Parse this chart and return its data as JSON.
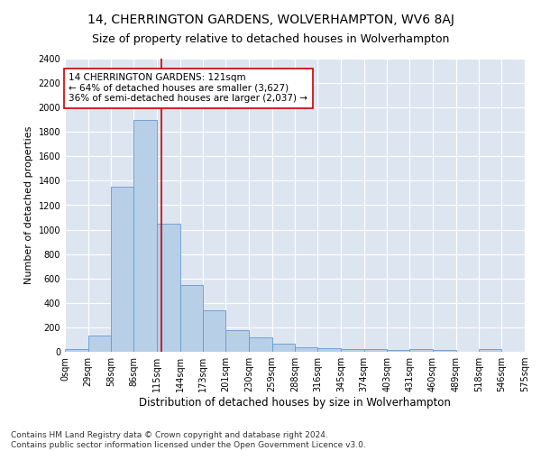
{
  "title": "14, CHERRINGTON GARDENS, WOLVERHAMPTON, WV6 8AJ",
  "subtitle": "Size of property relative to detached houses in Wolverhampton",
  "xlabel": "Distribution of detached houses by size in Wolverhampton",
  "ylabel": "Number of detached properties",
  "bar_color": "#b8cfe8",
  "bar_edge_color": "#6699cc",
  "background_color": "#dde6f0",
  "grid_color": "#ffffff",
  "annotation_line_color": "#cc0000",
  "annotation_box_color": "#cc0000",
  "annotation_text": "14 CHERRINGTON GARDENS: 121sqm\n← 64% of detached houses are smaller (3,627)\n36% of semi-detached houses are larger (2,037) →",
  "property_size": 121,
  "bin_edges": [
    0,
    29,
    58,
    86,
    115,
    144,
    173,
    201,
    230,
    259,
    288,
    316,
    345,
    374,
    403,
    431,
    460,
    489,
    518,
    546,
    575
  ],
  "bin_labels": [
    "0sqm",
    "29sqm",
    "58sqm",
    "86sqm",
    "115sqm",
    "144sqm",
    "173sqm",
    "201sqm",
    "230sqm",
    "259sqm",
    "288sqm",
    "316sqm",
    "345sqm",
    "374sqm",
    "403sqm",
    "431sqm",
    "460sqm",
    "489sqm",
    "518sqm",
    "546sqm",
    "575sqm"
  ],
  "counts": [
    20,
    130,
    1350,
    1900,
    1050,
    550,
    340,
    175,
    115,
    65,
    40,
    30,
    25,
    20,
    12,
    25,
    12,
    0,
    20,
    0
  ],
  "ylim": [
    0,
    2400
  ],
  "yticks": [
    0,
    200,
    400,
    600,
    800,
    1000,
    1200,
    1400,
    1600,
    1800,
    2000,
    2200,
    2400
  ],
  "footnote": "Contains HM Land Registry data © Crown copyright and database right 2024.\nContains public sector information licensed under the Open Government Licence v3.0.",
  "title_fontsize": 10,
  "subtitle_fontsize": 9,
  "xlabel_fontsize": 8.5,
  "ylabel_fontsize": 8,
  "tick_fontsize": 7,
  "annotation_fontsize": 7.5,
  "footnote_fontsize": 6.5
}
